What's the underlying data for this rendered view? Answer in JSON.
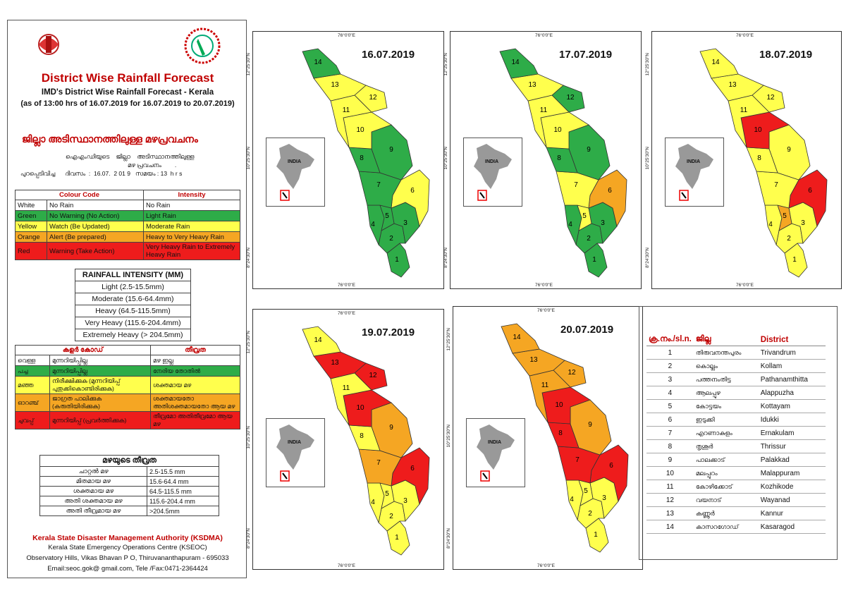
{
  "header": {
    "title": "District Wise Rainfall Forecast",
    "subtitle": "IMD's District Wise Rainfall Forecast - Kerala",
    "issued": "(as of 13:00 hrs of 16.07.2019  for 16.07.2019 to 20.07.2019)",
    "ml_title": "ജില്ലാ അടിസ്ഥാനത്തിലുള്ള മഴപ്രവചനം",
    "ml_line1": "ഐഎംഡിയുടെ    ജില്ലാ    അടിസ്ഥാനത്തിലുള്ള",
    "ml_line2": "മഴ പ്രവചനം        .",
    "ml_line3": "പുറപ്പെടിവിച്ച      ദിവസം  :  16.07.  2 01 9   സമയം : 13  h r s"
  },
  "colour_code": {
    "headers": [
      "Colour Code",
      "Intensity"
    ],
    "rows": [
      {
        "colour": "White",
        "code": "No Rain",
        "intensity": "No Rain",
        "class": "white"
      },
      {
        "colour": "Green",
        "code": "No Warning (No Action)",
        "intensity": "Light Rain",
        "class": "green"
      },
      {
        "colour": "Yellow",
        "code": "Watch (Be Updated)",
        "intensity": "Moderate Rain",
        "class": "yellow"
      },
      {
        "colour": "Orange",
        "code": "Alert (Be prepared)",
        "intensity": "Heavy to Very Heavy Rain",
        "class": "orange"
      },
      {
        "colour": "Red",
        "code": "Warning (Take Action)",
        "intensity": "Very Heavy Rain to Extremely Heavy Rain",
        "class": "red"
      }
    ]
  },
  "rainfall_intensity": {
    "title": "RAINFALL INTENSITY (MM)",
    "rows": [
      "Light (2.5-15.5mm)",
      "Moderate (15.6-64.4mm)",
      "Heavy (64.5-115.5mm)",
      "Very Heavy (115.6-204.4mm)",
      "Extremely Heavy (> 204.5mm)"
    ]
  },
  "ml_colour_code": {
    "headers": [
      "കളർ കോഡ്",
      "തീവ്രത"
    ],
    "rows": [
      {
        "colour": "വെള്ള",
        "code": "മുന്നറിയിപ്പില്ല",
        "intensity": "മഴ ഇല്ല",
        "class": "white"
      },
      {
        "colour": "പച്ച",
        "code": "മുന്നറിയിപ്പില്ല",
        "intensity": "നേരിയ തോതിൽ",
        "class": "green"
      },
      {
        "colour": "മഞ്ഞ",
        "code": "നിരീക്ഷിക്കുക (മുന്നറിയിപ്പ് പുതുക്കികൊണ്ടിരിക്കുക)",
        "intensity": "ശക്തമായ മഴ",
        "class": "yellow"
      },
      {
        "colour": "ഓറഞ്ച്",
        "code": "ജാഗ്രത പാലിക്കുക (കരുതിയിരിക്കുക)",
        "intensity": "ശക്തമായതോ അതിശക്തമായതോ ആയ മഴ",
        "class": "orange"
      },
      {
        "colour": "ചുവപ്പ്",
        "code": "മുന്നറിയിപ്പ് (പ്രവർത്തിക്കുക)",
        "intensity": "തീവ്രമോ അതിതീവ്രമോ ആയ മഴ",
        "class": "red"
      }
    ]
  },
  "ml_intensity": {
    "title": "മഴയുടെ തീവ്രത",
    "rows": [
      {
        "label": "ചാറ്റൽ മഴ",
        "value": "2.5-15.5 mm"
      },
      {
        "label": "മിതമായ മഴ",
        "value": "15.6-64.4 mm"
      },
      {
        "label": "ശക്തമായ മഴ",
        "value": "64.5-115.5 mm"
      },
      {
        "label": "അതി ശക്തമായ മഴ",
        "value": "115.6-204.4 mm"
      },
      {
        "label": "അതി തീവ്രമായ മഴ",
        "value": ">204.5mm"
      }
    ]
  },
  "footer": {
    "org": "Kerala State Disaster Management Authority (KSDMA)",
    "line1": "Kerala State Emergency Operations Centre (KSEOC)",
    "line2": "Observatory Hills, Vikas Bhavan P O, Thiruvananthapuram - 695033",
    "line3": "Email:seoc.gok@ gmail.com, Tele /Fax:0471-2364424"
  },
  "map_labels": {
    "lon": "76°0'0\"E",
    "lon2": "76°0'0\"E",
    "lat_top": "12°25'30\"N",
    "lat_mid": "10°25'30\"N",
    "lat_bot": "8°24'30\"N",
    "inset": "INDIA"
  },
  "colors": {
    "green": "#2eac48",
    "yellow": "#ffff4d",
    "orange": "#f5a623",
    "red": "#ee1c1c"
  },
  "forecasts": [
    {
      "date": "16.07.2019",
      "d": [
        "green",
        "green",
        "green",
        "green",
        "green",
        "yellow",
        "green",
        "green",
        "green",
        "yellow",
        "yellow",
        "yellow",
        "yellow",
        "green"
      ]
    },
    {
      "date": "17.07.2019",
      "d": [
        "green",
        "green",
        "green",
        "green",
        "yellow",
        "orange",
        "yellow",
        "green",
        "green",
        "yellow",
        "yellow",
        "green",
        "yellow",
        "green"
      ]
    },
    {
      "date": "18.07.2019",
      "d": [
        "yellow",
        "yellow",
        "yellow",
        "yellow",
        "orange",
        "red",
        "yellow",
        "yellow",
        "yellow",
        "red",
        "yellow",
        "yellow",
        "yellow",
        "yellow"
      ]
    },
    {
      "date": "19.07.2019",
      "d": [
        "yellow",
        "yellow",
        "yellow",
        "yellow",
        "yellow",
        "red",
        "orange",
        "yellow",
        "orange",
        "red",
        "yellow",
        "red",
        "red",
        "yellow"
      ]
    },
    {
      "date": "20.07.2019",
      "d": [
        "yellow",
        "yellow",
        "yellow",
        "yellow",
        "yellow",
        "red",
        "red",
        "red",
        "orange",
        "red",
        "orange",
        "orange",
        "orange",
        "orange"
      ]
    }
  ],
  "district_table": {
    "headers": [
      "ക്ര.നം./sl.n.",
      "ജില്ല",
      "District"
    ],
    "rows": [
      {
        "n": "1",
        "ml": "തിരുവനന്തപുരം",
        "en": "Trivandrum"
      },
      {
        "n": "2",
        "ml": "കൊല്ലം",
        "en": "Kollam"
      },
      {
        "n": "3",
        "ml": "പത്തനംതിട്ട",
        "en": "Pathanamthitta"
      },
      {
        "n": "4",
        "ml": "ആലപ്പുഴ",
        "en": "Alappuzha"
      },
      {
        "n": "5",
        "ml": "കോട്ടയം",
        "en": "Kottayam"
      },
      {
        "n": "6",
        "ml": "ഇടുക്കി",
        "en": "Idukki"
      },
      {
        "n": "7",
        "ml": "എറണാകുളം",
        "en": "Ernakulam"
      },
      {
        "n": "8",
        "ml": "തൃശൂർ",
        "en": "Thrissur"
      },
      {
        "n": "9",
        "ml": "പാലക്കാട്",
        "en": "Palakkad"
      },
      {
        "n": "10",
        "ml": "മലപ്പുറം",
        "en": "Malappuram"
      },
      {
        "n": "11",
        "ml": "കോഴിക്കോട്",
        "en": "Kozhikode"
      },
      {
        "n": "12",
        "ml": "വയനാട്",
        "en": "Wayanad"
      },
      {
        "n": "13",
        "ml": "കണ്ണൂർ",
        "en": "Kannur"
      },
      {
        "n": "14",
        "ml": "കാസറഗോഡ്",
        "en": "Kasaragod"
      }
    ]
  }
}
